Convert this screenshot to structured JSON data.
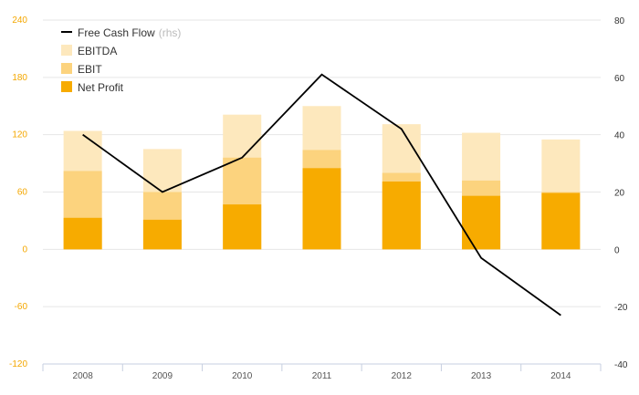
{
  "chart_data": {
    "type": "bar",
    "categories": [
      "2008",
      "2009",
      "2010",
      "2011",
      "2012",
      "2013",
      "2014"
    ],
    "y_left": {
      "ticks": [
        "240",
        "180",
        "120",
        "60",
        "0",
        "-60",
        "-120"
      ],
      "ylim": [
        -120,
        240
      ]
    },
    "y_right": {
      "ticks": [
        "80",
        "60",
        "40",
        "20",
        "0",
        "-20",
        "-40"
      ],
      "ylim": [
        -40,
        80
      ]
    },
    "series": [
      {
        "name": "EBITDA",
        "type": "bar",
        "color": "#fde8bd",
        "values": [
          124,
          105,
          141,
          150,
          131,
          122,
          115
        ]
      },
      {
        "name": "EBIT",
        "type": "bar",
        "color": "#fcd37e",
        "values": [
          82,
          60,
          96,
          104,
          80,
          72,
          60
        ]
      },
      {
        "name": "Net Profit",
        "type": "bar",
        "color": "#f7ab00",
        "values": [
          33,
          31,
          47,
          85,
          71,
          56,
          59
        ]
      },
      {
        "name": "Free Cash Flow",
        "unit_note": "(rhs)",
        "type": "line",
        "axis": "right",
        "color": "#000000",
        "values": [
          40,
          20,
          32,
          61,
          42,
          -3,
          -23
        ]
      }
    ],
    "legend": {
      "position": "top-left",
      "items": [
        {
          "label": "Free Cash Flow",
          "sub": "(rhs)",
          "marker": "line",
          "color": "#000000"
        },
        {
          "label": "EBITDA",
          "marker": "box",
          "color": "#fde8bd"
        },
        {
          "label": "EBIT",
          "marker": "box",
          "color": "#fcd37e"
        },
        {
          "label": "Net Profit",
          "marker": "box",
          "color": "#f7ab00"
        }
      ]
    },
    "grid": true
  }
}
